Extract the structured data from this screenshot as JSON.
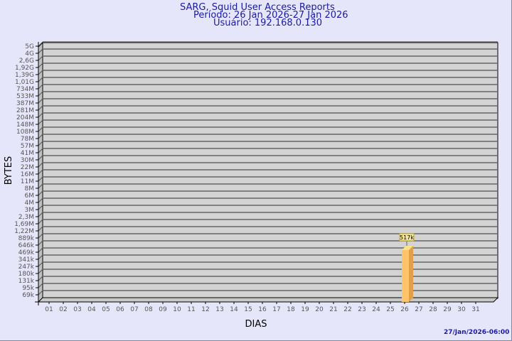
{
  "header": {
    "title": "SARG, Squid User Access Reports",
    "period": "Período: 26 Jan 2026-27 Jan 2026",
    "user": "Usuário: 192.168.0.130"
  },
  "footer": {
    "timestamp": "27/Jan/2026-06:00"
  },
  "colors": {
    "background": "#e6e6fa",
    "plot": "#d3d3d3",
    "bar": "#ffc46a",
    "title": "#1a1aa0"
  },
  "chart_data": {
    "type": "bar",
    "xlabel": "DIAS",
    "ylabel": "BYTES",
    "y_scale": "log",
    "y_tick_labels": [
      "5G",
      "4G",
      "2,6G",
      "1,92G",
      "1,39G",
      "1,01G",
      "734M",
      "533M",
      "387M",
      "281M",
      "204M",
      "148M",
      "108M",
      "78M",
      "57M",
      "41M",
      "30M",
      "22M",
      "16M",
      "11M",
      "8M",
      "6M",
      "4M",
      "3M",
      "2,3M",
      "1,69M",
      "1,22M",
      "889k",
      "646k",
      "469k",
      "341k",
      "247k",
      "180k",
      "131k",
      "95k",
      "69k"
    ],
    "categories": [
      "01",
      "02",
      "03",
      "04",
      "05",
      "06",
      "07",
      "08",
      "09",
      "10",
      "11",
      "12",
      "13",
      "14",
      "15",
      "16",
      "17",
      "18",
      "19",
      "20",
      "21",
      "22",
      "23",
      "24",
      "25",
      "26",
      "27",
      "28",
      "29",
      "30",
      "31"
    ],
    "bars": [
      {
        "category": "26",
        "value": 517000,
        "label": "517k"
      }
    ],
    "grid": true
  }
}
